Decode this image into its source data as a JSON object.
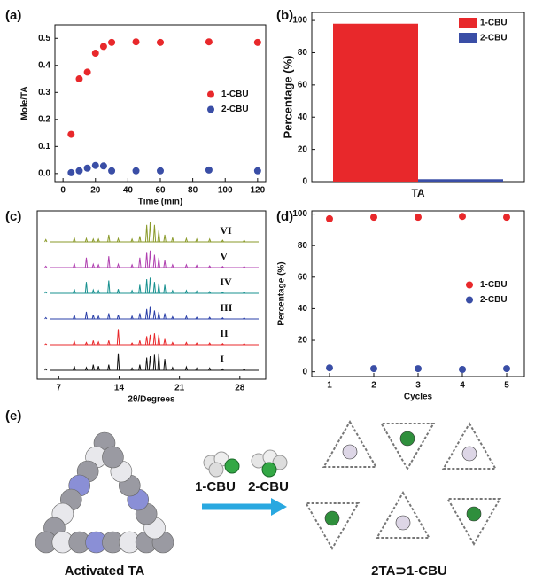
{
  "chart_data": [
    {
      "type": "scatter",
      "label": "(a)",
      "xlabel": "Time (min)",
      "ylabel": "Mole/TA",
      "x": [
        5,
        10,
        15,
        20,
        25,
        30,
        45,
        60,
        90,
        120
      ],
      "series": [
        {
          "name": "1-CBU",
          "color": "#e8282b",
          "values": [
            0.145,
            0.35,
            0.375,
            0.445,
            0.47,
            0.485,
            0.487,
            0.485,
            0.487,
            0.485
          ]
        },
        {
          "name": "2-CBU",
          "color": "#3a4ea6",
          "values": [
            0.003,
            0.01,
            0.02,
            0.03,
            0.028,
            0.01,
            0.01,
            0.01,
            0.013,
            0.01
          ]
        }
      ],
      "xlim": [
        -5,
        125
      ],
      "xticks": [
        0,
        20,
        40,
        60,
        80,
        100,
        120
      ],
      "ylim": [
        -0.03,
        0.55
      ],
      "yticks": [
        {
          "value": 0,
          "label": "0.0"
        },
        0.1,
        0.2,
        0.3,
        0.4,
        0.5
      ],
      "legend": "center right"
    },
    {
      "type": "bar",
      "label": "(b)",
      "ylabel": "Percentage (%)",
      "categories": [
        "TA"
      ],
      "series": [
        {
          "name": "1-CBU",
          "color": "#e8282b",
          "values": [
            98
          ]
        },
        {
          "name": "2-CBU",
          "color": "#3a4ea6",
          "values": [
            1.5
          ]
        }
      ],
      "ylim": [
        0,
        105
      ],
      "yticks": [
        0,
        20,
        40,
        60,
        80,
        100
      ],
      "legend": "upper right"
    },
    {
      "type": "spectrum",
      "label": "(c)",
      "xlabel": "2θ/Degrees",
      "x": [
        5.5,
        8.8,
        10.2,
        11.0,
        11.6,
        12.8,
        13.9,
        15.5,
        16.4,
        17.2,
        17.6,
        18.1,
        18.6,
        19.3,
        20.2,
        21.8,
        23.0,
        24.5,
        26.0,
        28.5
      ],
      "series": [
        {
          "name": "I",
          "color": "#111111",
          "values": [
            5,
            15,
            10,
            20,
            15,
            20,
            60,
            8,
            20,
            45,
            50,
            55,
            60,
            40,
            10,
            12,
            8,
            8,
            5,
            5
          ]
        },
        {
          "name": "II",
          "color": "#e8282b",
          "values": [
            3,
            12,
            8,
            15,
            10,
            15,
            55,
            6,
            15,
            30,
            35,
            40,
            35,
            20,
            8,
            8,
            6,
            6,
            4,
            4
          ]
        },
        {
          "name": "III",
          "color": "#2a3fa8",
          "values": [
            5,
            15,
            25,
            15,
            10,
            20,
            15,
            10,
            20,
            35,
            45,
            30,
            25,
            20,
            8,
            10,
            6,
            6,
            4,
            4
          ]
        },
        {
          "name": "IV",
          "color": "#17908f",
          "values": [
            5,
            15,
            40,
            12,
            10,
            45,
            15,
            10,
            30,
            50,
            55,
            40,
            35,
            30,
            10,
            10,
            8,
            6,
            4,
            4
          ]
        },
        {
          "name": "V",
          "color": "#b040b0",
          "values": [
            5,
            15,
            35,
            12,
            10,
            40,
            12,
            10,
            35,
            55,
            60,
            45,
            35,
            25,
            10,
            10,
            8,
            6,
            4,
            4
          ]
        },
        {
          "name": "VI",
          "color": "#8a9a2a",
          "values": [
            8,
            15,
            12,
            10,
            10,
            25,
            12,
            10,
            20,
            60,
            70,
            60,
            40,
            25,
            15,
            12,
            10,
            10,
            6,
            6
          ]
        }
      ],
      "xlim": [
        4.5,
        31
      ],
      "xticks": [
        7,
        14,
        21,
        28
      ]
    },
    {
      "type": "scatter",
      "label": "(d)",
      "xlabel": "Cycles",
      "ylabel": "Percentage (%)",
      "x": [
        1,
        2,
        3,
        4,
        5
      ],
      "series": [
        {
          "name": "1-CBU",
          "color": "#e8282b",
          "values": [
            97,
            98,
            98,
            98.5,
            98
          ]
        },
        {
          "name": "2-CBU",
          "color": "#3a4ea6",
          "values": [
            2.5,
            2,
            2,
            1.5,
            2
          ]
        }
      ],
      "xlim": [
        0.6,
        5.4
      ],
      "xticks": [
        1,
        2,
        3,
        4,
        5
      ],
      "ylim": [
        -3,
        102
      ],
      "yticks": [
        0,
        20,
        40,
        60,
        80,
        100
      ],
      "legend": "center right"
    }
  ],
  "panel_e": {
    "label": "(e)",
    "guests": [
      "1-CBU",
      "2-CBU"
    ],
    "left_caption": "Activated TA",
    "right_caption": "2TA⊃1-CBU"
  }
}
